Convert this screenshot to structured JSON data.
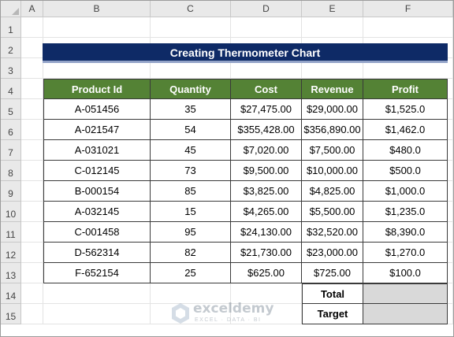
{
  "columns": [
    "A",
    "B",
    "C",
    "D",
    "E",
    "F"
  ],
  "rows": [
    "1",
    "2",
    "3",
    "4",
    "5",
    "6",
    "7",
    "8",
    "9",
    "10",
    "11",
    "12",
    "13",
    "14",
    "15"
  ],
  "title": "Creating Thermometer Chart",
  "table": {
    "headers": [
      "Product Id",
      "Quantity",
      "Cost",
      "Revenue",
      "Profit"
    ],
    "rows": [
      [
        "A-051456",
        "35",
        "$27,475.00",
        "$29,000.00",
        "$1,525.0"
      ],
      [
        "A-021547",
        "54",
        "$355,428.00",
        "$356,890.00",
        "$1,462.0"
      ],
      [
        "A-031021",
        "45",
        "$7,020.00",
        "$7,500.00",
        "$480.0"
      ],
      [
        "C-012145",
        "73",
        "$9,500.00",
        "$10,000.00",
        "$500.0"
      ],
      [
        "B-000154",
        "85",
        "$3,825.00",
        "$4,825.00",
        "$1,000.0"
      ],
      [
        "A-032145",
        "15",
        "$4,265.00",
        "$5,500.00",
        "$1,235.0"
      ],
      [
        "C-001458",
        "95",
        "$24,130.00",
        "$32,520.00",
        "$8,390.0"
      ],
      [
        "D-562314",
        "82",
        "$21,730.00",
        "$23,000.00",
        "$1,270.0"
      ],
      [
        "F-652154",
        "25",
        "$625.00",
        "$725.00",
        "$100.0"
      ]
    ]
  },
  "summary": {
    "total_label": "Total",
    "total_value": "",
    "target_label": "Target",
    "target_value": ""
  },
  "watermark": {
    "name": "exceldemy",
    "sub": "EXCEL · DATA · BI"
  },
  "colors": {
    "title_bg": "#0e2a66",
    "header_bg": "#548235",
    "summary_value_bg": "#d9d9d9"
  }
}
